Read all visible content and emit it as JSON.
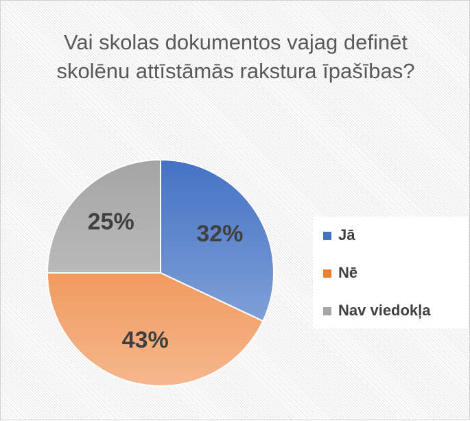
{
  "chart_data": {
    "type": "pie",
    "title": "Vai skolas dokumentos vajag definēt skolēnu attīstāmās rakstura īpašības?",
    "categories": [
      "Jā",
      "Nē",
      "Nav viedokļa"
    ],
    "values": [
      32,
      43,
      25
    ],
    "value_labels": [
      "32%",
      "43%",
      "25%"
    ],
    "colors": [
      "#4472c4",
      "#ed7d31",
      "#a5a5a5"
    ],
    "legend": "right"
  }
}
